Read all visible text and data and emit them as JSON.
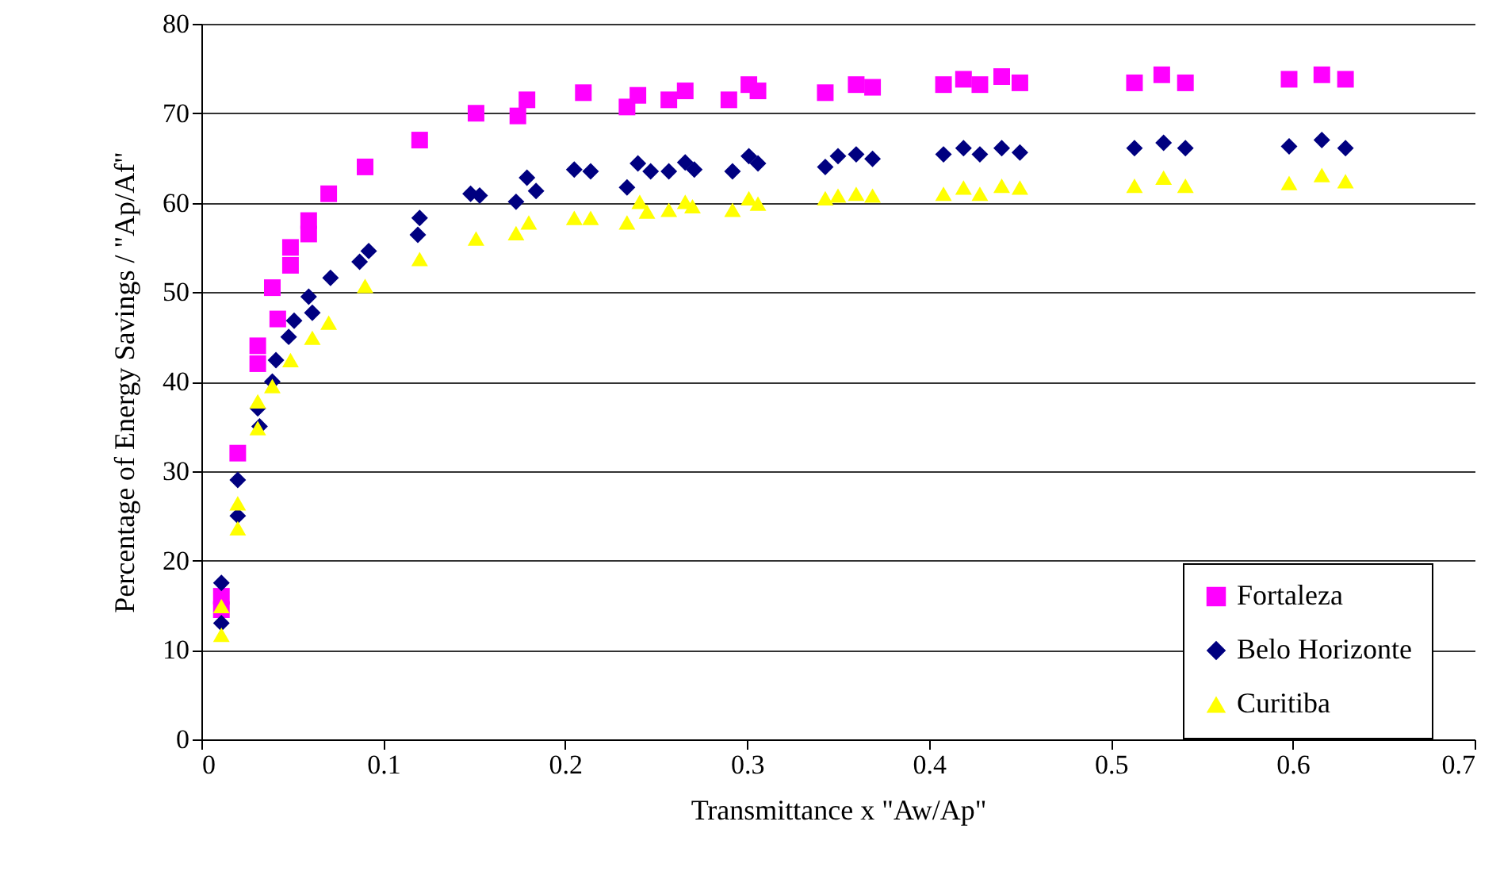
{
  "chart_data": {
    "type": "scatter",
    "xlabel": "Transmittance x \"Aw/Ap\"",
    "ylabel": "Percentage of Energy Savings / \"Ap/Af\"",
    "xlim": [
      0,
      0.7
    ],
    "xticks": [
      0,
      0.1,
      0.2,
      0.3,
      0.4,
      0.5,
      0.6,
      0.7
    ],
    "ylim": [
      0,
      80
    ],
    "yticks": [
      0,
      10,
      20,
      30,
      40,
      50,
      60,
      70,
      80
    ],
    "grid": "y",
    "legend": "bottom right",
    "series": [
      {
        "name": "Fortaleza",
        "color": "#ff00ff",
        "marker": "square",
        "x": [
          0.011,
          0.011,
          0.02,
          0.031,
          0.031,
          0.039,
          0.042,
          0.049,
          0.049,
          0.059,
          0.059,
          0.07,
          0.09,
          0.12,
          0.151,
          0.174,
          0.179,
          0.21,
          0.234,
          0.24,
          0.257,
          0.266,
          0.29,
          0.301,
          0.306,
          0.343,
          0.36,
          0.369,
          0.408,
          0.419,
          0.428,
          0.44,
          0.45,
          0.513,
          0.528,
          0.541,
          0.598,
          0.616,
          0.629
        ],
        "values": [
          16,
          14.5,
          32,
          42,
          44,
          50.5,
          47,
          53,
          55,
          56.5,
          58,
          61,
          64,
          67,
          70,
          69.7,
          71.5,
          72.3,
          70.7,
          72,
          71.5,
          72.5,
          71.5,
          73.2,
          72.5,
          72.3,
          73.2,
          72.9,
          73.2,
          73.8,
          73.2,
          74.1,
          73.4,
          73.4,
          74.3,
          73.4,
          73.8,
          74.3,
          73.8
        ]
      },
      {
        "name": "Belo Horizonte",
        "color": "#000080",
        "marker": "diamond",
        "x": [
          0.011,
          0.011,
          0.02,
          0.02,
          0.031,
          0.032,
          0.039,
          0.041,
          0.048,
          0.051,
          0.059,
          0.061,
          0.071,
          0.087,
          0.092,
          0.12,
          0.119,
          0.148,
          0.153,
          0.173,
          0.179,
          0.184,
          0.205,
          0.214,
          0.234,
          0.24,
          0.247,
          0.257,
          0.266,
          0.271,
          0.292,
          0.301,
          0.306,
          0.343,
          0.35,
          0.36,
          0.369,
          0.408,
          0.419,
          0.428,
          0.44,
          0.45,
          0.513,
          0.529,
          0.541,
          0.598,
          0.616,
          0.629
        ],
        "values": [
          17.5,
          13,
          29,
          25,
          37,
          35,
          40,
          42.4,
          45,
          46.8,
          49.5,
          47.7,
          51.6,
          53.4,
          54.6,
          58.3,
          56.4,
          61,
          60.8,
          60.1,
          62.8,
          61.3,
          63.7,
          63.5,
          61.7,
          64.4,
          63.5,
          63.5,
          64.5,
          63.7,
          63.5,
          65.2,
          64.4,
          64,
          65.2,
          65.4,
          64.9,
          65.4,
          66.1,
          65.4,
          66.1,
          65.6,
          66.1,
          66.7,
          66.1,
          66.3,
          67,
          66.1
        ]
      },
      {
        "name": "Curitiba",
        "color": "#ffff00",
        "marker": "triangle",
        "x": [
          0.011,
          0.011,
          0.02,
          0.02,
          0.031,
          0.031,
          0.039,
          0.049,
          0.061,
          0.07,
          0.09,
          0.12,
          0.151,
          0.18,
          0.173,
          0.205,
          0.214,
          0.234,
          0.241,
          0.245,
          0.257,
          0.266,
          0.27,
          0.292,
          0.301,
          0.306,
          0.343,
          0.35,
          0.36,
          0.369,
          0.408,
          0.419,
          0.428,
          0.44,
          0.45,
          0.513,
          0.529,
          0.541,
          0.598,
          0.616,
          0.629
        ],
        "values": [
          14.9,
          11.7,
          26.4,
          23.6,
          37.8,
          34.8,
          39.5,
          42.4,
          44.9,
          46.6,
          50.7,
          53.7,
          56,
          57.8,
          56.6,
          58.3,
          58.3,
          57.8,
          60.1,
          59,
          59.2,
          60.1,
          59.6,
          59.2,
          60.5,
          59.9,
          60.5,
          60.8,
          61,
          60.8,
          61,
          61.7,
          61,
          61.9,
          61.7,
          61.9,
          62.8,
          61.9,
          62.2,
          63.1,
          62.4
        ]
      }
    ]
  }
}
